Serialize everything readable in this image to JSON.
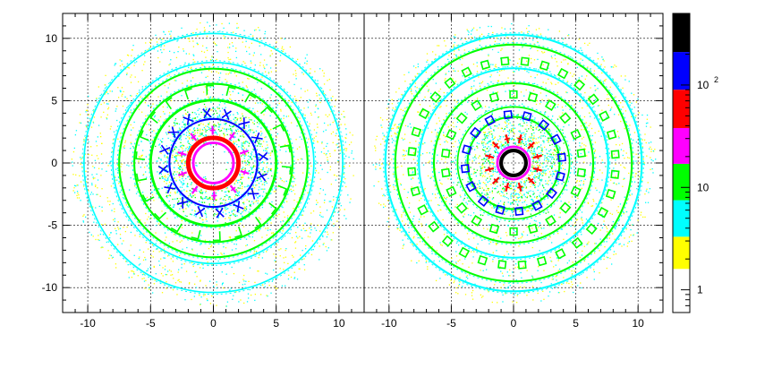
{
  "chart_data": [
    {
      "type": "heatmap",
      "panel": "left",
      "title": "",
      "xlabel": "",
      "ylabel": "",
      "xlim": [
        -12,
        12
      ],
      "ylim": [
        -12,
        12
      ],
      "x_ticks": [
        -10,
        -5,
        0,
        5,
        10
      ],
      "y_ticks": [
        -10,
        -5,
        0,
        5,
        10
      ],
      "grid": true,
      "rings": [
        {
          "radius": 2.0,
          "level": "red",
          "width": 0.35
        },
        {
          "radius": 1.6,
          "level": "magenta",
          "width": 0.2
        },
        {
          "radius": 3.5,
          "level": "blue",
          "width": 0.15
        },
        {
          "radius": 5.0,
          "level": "green",
          "width": 0.2
        },
        {
          "radius": 6.3,
          "level": "green",
          "width": 0.15
        },
        {
          "radius": 7.5,
          "level": "green",
          "width": 0.15
        },
        {
          "radius": 8.0,
          "level": "cyan",
          "width": 0.12
        },
        {
          "radius": 10.3,
          "level": "cyan",
          "width": 0.12
        }
      ],
      "modules": [
        {
          "radius": 2.6,
          "count": 10,
          "shape": "tick",
          "level": "magenta"
        },
        {
          "radius": 4.0,
          "count": 16,
          "shape": "cross",
          "level": "blue"
        },
        {
          "radius": 5.8,
          "count": 22,
          "shape": "bracket",
          "level": "green"
        }
      ]
    },
    {
      "type": "heatmap",
      "panel": "right",
      "title": "",
      "xlabel": "",
      "ylabel": "",
      "xlim": [
        -12,
        12
      ],
      "ylim": [
        -12,
        12
      ],
      "x_ticks": [
        -10,
        -5,
        0,
        5,
        10
      ],
      "y_ticks": [],
      "grid": true,
      "rings": [
        {
          "radius": 1.0,
          "level": "black",
          "width": 0.3
        },
        {
          "radius": 1.3,
          "level": "magenta",
          "width": 0.2
        },
        {
          "radius": 3.7,
          "level": "green",
          "width": 0.15
        },
        {
          "radius": 4.5,
          "level": "green",
          "width": 0.12
        },
        {
          "radius": 6.4,
          "level": "green",
          "width": 0.15
        },
        {
          "radius": 7.6,
          "level": "cyan",
          "width": 0.15
        },
        {
          "radius": 9.5,
          "level": "green",
          "width": 0.15
        },
        {
          "radius": 10.3,
          "level": "cyan",
          "width": 0.15
        }
      ],
      "modules": [
        {
          "radius": 2.0,
          "count": 12,
          "shape": "tick",
          "level": "red"
        },
        {
          "radius": 3.9,
          "count": 16,
          "shape": "square",
          "level": "blue"
        },
        {
          "radius": 5.5,
          "count": 22,
          "shape": "square",
          "level": "green"
        },
        {
          "radius": 8.2,
          "count": 32,
          "shape": "square",
          "level": "green"
        }
      ]
    }
  ],
  "color_scale": {
    "scale": "log",
    "range": [
      0.6,
      500
    ],
    "label_min": "1",
    "label_mid": "10",
    "label_max_base": "10",
    "label_max_exp": "2",
    "palette": [
      {
        "name": "white",
        "color": "#ffffff",
        "from": 0.6,
        "to": 1.6
      },
      {
        "name": "yellow",
        "color": "#ffff00",
        "from": 1.6,
        "to": 3.3
      },
      {
        "name": "cyan",
        "color": "#00ffff",
        "from": 3.3,
        "to": 7.5
      },
      {
        "name": "green",
        "color": "#00ff00",
        "from": 7.5,
        "to": 17
      },
      {
        "name": "magenta",
        "color": "#ff00ff",
        "from": 17,
        "to": 38
      },
      {
        "name": "red",
        "color": "#ff0000",
        "from": 38,
        "to": 90
      },
      {
        "name": "blue",
        "color": "#0000ff",
        "from": 90,
        "to": 210
      },
      {
        "name": "black",
        "color": "#000000",
        "from": 210,
        "to": 500
      }
    ]
  }
}
